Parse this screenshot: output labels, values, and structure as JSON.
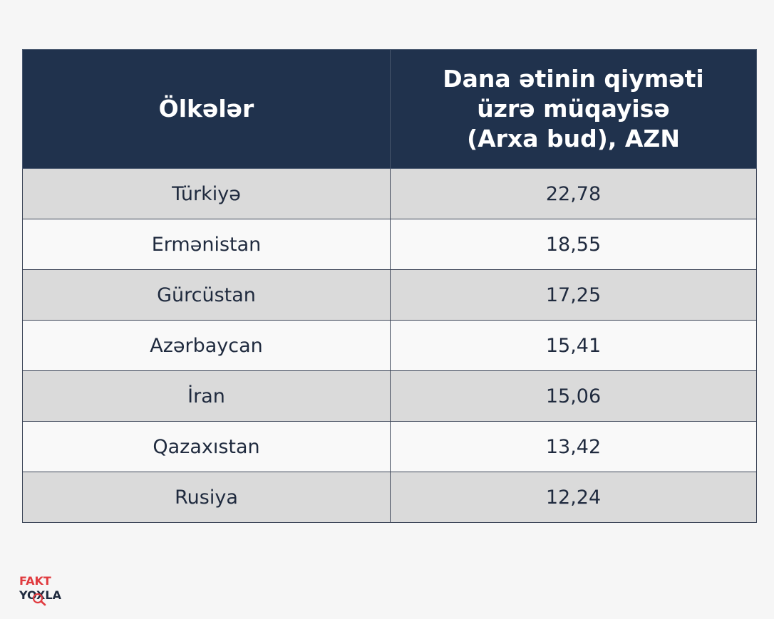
{
  "chart_data": {
    "type": "table",
    "columns": [
      "Ölkələr",
      [
        "Dana ətinin qiyməti",
        "üzrə müqayisə",
        "(Arxa bud), AZN"
      ]
    ],
    "rows": [
      {
        "country": "Türkiyə",
        "value": "22,78"
      },
      {
        "country": "Ermənistan",
        "value": "18,55"
      },
      {
        "country": "Gürcüstan",
        "value": "17,25"
      },
      {
        "country": "Azərbaycan",
        "value": "15,41"
      },
      {
        "country": "İran",
        "value": "15,06"
      },
      {
        "country": "Qazaxıstan",
        "value": "13,42"
      },
      {
        "country": "Rusiya",
        "value": "12,24"
      }
    ]
  },
  "logo": {
    "line1": "FAKT",
    "line2": "YOXLA",
    "icon": "magnifier-icon",
    "accent_color": "#e03a3e"
  },
  "colors": {
    "header_bg": "#20324d",
    "row_shaded": "#dadada",
    "row_plain": "#f9f9f9",
    "text": "#1f2a3e"
  }
}
